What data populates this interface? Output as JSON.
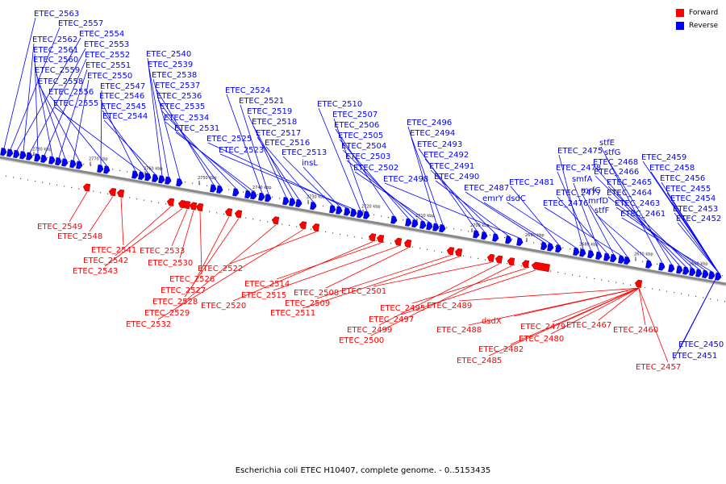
{
  "caption": "Escherichia coli ETEC H10407, complete genome. - 0..5153435",
  "colors": {
    "forward": "#ff0000",
    "reverse": "#0000ff",
    "backbone": "#888888"
  },
  "legend": [
    {
      "label": "Forward",
      "color": "#ff0000"
    },
    {
      "label": "Reverse",
      "color": "#0000ff"
    }
  ],
  "ticks": [
    "2780 kbp",
    "2770 kbp",
    "2760 kbp",
    "2750 kbp",
    "2740 kbp",
    "2730 kbp",
    "2720 kbp",
    "2710 kbp",
    "2700 kbp",
    "2690 kbp",
    "2680 kbp",
    "2670 kbp",
    "2660 kbp"
  ],
  "reverse_labels": [
    "ETEC_2563",
    "ETEC_2557",
    "ETEC_2554",
    "ETEC_2562",
    "ETEC_2553",
    "ETEC_2561",
    "ETEC_2552",
    "ETEC_2560",
    "ETEC_2551",
    "ETEC_2559",
    "ETEC_2550",
    "ETEC_2558",
    "ETEC_2547",
    "ETEC_2556",
    "ETEC_2546",
    "ETEC_2555",
    "ETEC_2545",
    "ETEC_2544",
    "ETEC_2540",
    "ETEC_2539",
    "ETEC_2538",
    "ETEC_2537",
    "ETEC_2536",
    "ETEC_2535",
    "ETEC_2534",
    "ETEC_2531",
    "ETEC_2524",
    "ETEC_2521",
    "ETEC_2519",
    "ETEC_2518",
    "ETEC_2517",
    "ETEC_2516",
    "ETEC_2513",
    "insL",
    "ETEC_2525",
    "ETEC_2523",
    "ETEC_2510",
    "ETEC_2507",
    "ETEC_2506",
    "ETEC_2505",
    "ETEC_2504",
    "ETEC_2503",
    "ETEC_2502",
    "ETEC_2496",
    "ETEC_2494",
    "ETEC_2493",
    "ETEC_2492",
    "ETEC_2491",
    "ETEC_2490",
    "ETEC_2498",
    "ETEC_2487",
    "emrY",
    "ETEC_2481",
    "dsdC",
    "ETEC_2475",
    "ETEC_2478",
    "smfA",
    "ETEC_2477",
    "mrfC",
    "ETEC_2476",
    "mrfD",
    "stfF",
    "stfE",
    "stfG",
    "ETEC_2468",
    "ETEC_2466",
    "ETEC_2465",
    "ETEC_2464",
    "ETEC_2463",
    "ETEC_2461",
    "ETEC_2459",
    "ETEC_2458",
    "ETEC_2456",
    "ETEC_2455",
    "ETEC_2454",
    "ETEC_2453",
    "ETEC_2452",
    "ETEC_2450",
    "ETEC_2451"
  ],
  "forward_labels": [
    "ETEC_2549",
    "ETEC_2548",
    "ETEC_2541",
    "ETEC_2542",
    "ETEC_2543",
    "ETEC_2533",
    "ETEC_2530",
    "ETEC_2526",
    "ETEC_2527",
    "ETEC_2528",
    "ETEC_2529",
    "ETEC_2532",
    "ETEC_2522",
    "ETEC_2520",
    "ETEC_2514",
    "ETEC_2515",
    "ETEC_2508",
    "ETEC_2509",
    "ETEC_2511",
    "ETEC_2501",
    "ETEC_2499",
    "ETEC_2500",
    "ETEC_2495",
    "ETEC_2497",
    "ETEC_2489",
    "ETEC_2488",
    "dsdX",
    "ETEC_2482",
    "ETEC_2485",
    "ETEC_2480",
    "ETEC_2479",
    "ETEC_2467",
    "ETEC_2460",
    "ETEC_2457"
  ]
}
